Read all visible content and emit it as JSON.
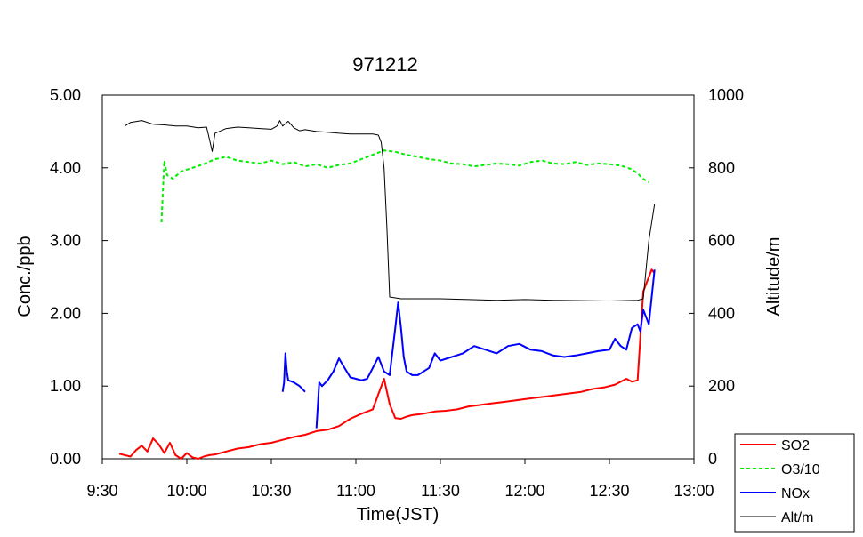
{
  "chart_data": {
    "type": "line",
    "title": "971212",
    "xlabel": "Time(JST)",
    "ylabel_left": "Conc./ppb",
    "ylabel_right": "Altitude/m",
    "x_ticks": [
      "9:30",
      "10:00",
      "10:30",
      "11:00",
      "11:30",
      "12:00",
      "12:30",
      "13:00"
    ],
    "xlim": [
      "9:30",
      "13:00"
    ],
    "y_left_ticks": [
      "0.00",
      "1.00",
      "2.00",
      "3.00",
      "4.00",
      "5.00"
    ],
    "y_left_lim": [
      0,
      5
    ],
    "y_right_ticks": [
      "0",
      "200",
      "400",
      "600",
      "800",
      "1000"
    ],
    "y_right_lim": [
      0,
      1000
    ],
    "grid": false,
    "legend_position": "bottom-right",
    "colors": {
      "SO2": "#ff0000",
      "O3/10": "#00ee00",
      "NOx": "#0000ff",
      "Alt/m": "#000000"
    },
    "series": [
      {
        "name": "SO2",
        "axis": "left",
        "style": "solid",
        "x": [
          "9:36",
          "9:40",
          "9:42",
          "9:44",
          "9:46",
          "9:48",
          "9:50",
          "9:52",
          "9:54",
          "9:56",
          "9:58",
          "10:00",
          "10:02",
          "10:04",
          "10:06",
          "10:08",
          "10:10",
          "10:14",
          "10:18",
          "10:22",
          "10:26",
          "10:30",
          "10:34",
          "10:38",
          "10:42",
          "10:46",
          "10:50",
          "10:54",
          "10:58",
          "11:02",
          "11:06",
          "11:10",
          "11:12",
          "11:14",
          "11:16",
          "11:18",
          "11:20",
          "11:24",
          "11:28",
          "11:32",
          "11:36",
          "11:40",
          "11:44",
          "11:48",
          "11:52",
          "11:56",
          "12:00",
          "12:04",
          "12:08",
          "12:12",
          "12:16",
          "12:20",
          "12:24",
          "12:28",
          "12:32",
          "12:36",
          "12:38",
          "12:40",
          "12:42",
          "12:44",
          "12:45",
          "12:46"
        ],
        "y": [
          0.07,
          0.03,
          0.12,
          0.18,
          0.1,
          0.28,
          0.2,
          0.08,
          0.22,
          0.05,
          0.0,
          0.08,
          0.02,
          0.0,
          0.03,
          0.05,
          0.06,
          0.1,
          0.14,
          0.16,
          0.2,
          0.22,
          0.26,
          0.3,
          0.33,
          0.38,
          0.4,
          0.45,
          0.55,
          0.62,
          0.68,
          1.1,
          0.75,
          0.56,
          0.55,
          0.58,
          0.6,
          0.62,
          0.65,
          0.66,
          0.68,
          0.72,
          0.74,
          0.76,
          0.78,
          0.8,
          0.82,
          0.84,
          0.86,
          0.88,
          0.9,
          0.92,
          0.96,
          0.98,
          1.02,
          1.1,
          1.06,
          1.08,
          2.3,
          2.5,
          2.6,
          2.55
        ]
      },
      {
        "name": "O3/10",
        "axis": "left",
        "style": "dashed",
        "x": [
          "9:51",
          "9:52",
          "9:53",
          "9:55",
          "9:58",
          "10:02",
          "10:06",
          "10:10",
          "10:14",
          "10:18",
          "10:22",
          "10:26",
          "10:30",
          "10:34",
          "10:38",
          "10:42",
          "10:46",
          "10:50",
          "10:54",
          "10:58",
          "11:02",
          "11:06",
          "11:10",
          "11:14",
          "11:18",
          "11:22",
          "11:26",
          "11:30",
          "11:34",
          "11:38",
          "11:42",
          "11:46",
          "11:50",
          "11:54",
          "11:58",
          "12:02",
          "12:06",
          "12:10",
          "12:14",
          "12:18",
          "12:22",
          "12:26",
          "12:30",
          "12:34",
          "12:38",
          "12:40",
          "12:42",
          "12:44"
        ],
        "y": [
          3.25,
          4.1,
          3.9,
          3.85,
          3.95,
          4.0,
          4.05,
          4.12,
          4.15,
          4.1,
          4.08,
          4.06,
          4.1,
          4.05,
          4.08,
          4.02,
          4.05,
          4.0,
          4.04,
          4.06,
          4.12,
          4.18,
          4.24,
          4.22,
          4.18,
          4.15,
          4.12,
          4.1,
          4.06,
          4.05,
          4.02,
          4.04,
          4.06,
          4.05,
          4.03,
          4.08,
          4.1,
          4.06,
          4.05,
          4.08,
          4.04,
          4.06,
          4.05,
          4.03,
          3.98,
          3.92,
          3.85,
          3.8
        ]
      },
      {
        "name": "NOx",
        "axis": "left",
        "style": "solid",
        "segments": [
          {
            "x": [
              "10:34",
              "10:34.5",
              "10:35",
              "10:35.5",
              "10:36",
              "10:38",
              "10:40",
              "10:42"
            ],
            "y": [
              0.92,
              1.05,
              1.45,
              1.2,
              1.08,
              1.05,
              1.0,
              0.92
            ]
          },
          {
            "x": [
              "10:46",
              "10:47",
              "10:48",
              "10:50",
              "10:52",
              "10:54",
              "10:56",
              "10:58",
              "11:00",
              "11:02",
              "11:04",
              "11:06",
              "11:08",
              "11:10",
              "11:12",
              "11:14",
              "11:15",
              "11:16",
              "11:17",
              "11:18",
              "11:20",
              "11:22",
              "11:24",
              "11:26",
              "11:28",
              "11:30",
              "11:34",
              "11:38",
              "11:42",
              "11:46",
              "11:50",
              "11:54",
              "11:58",
              "12:02",
              "12:06",
              "12:10",
              "12:14",
              "12:18",
              "12:22",
              "12:26",
              "12:30",
              "12:32",
              "12:34",
              "12:36",
              "12:38",
              "12:40",
              "12:41",
              "12:42",
              "12:44",
              "12:46"
            ],
            "y": [
              0.42,
              1.05,
              1.0,
              1.08,
              1.2,
              1.38,
              1.25,
              1.12,
              1.1,
              1.08,
              1.1,
              1.25,
              1.4,
              1.2,
              1.15,
              1.8,
              2.15,
              1.8,
              1.4,
              1.2,
              1.15,
              1.15,
              1.2,
              1.25,
              1.45,
              1.35,
              1.4,
              1.45,
              1.55,
              1.5,
              1.45,
              1.55,
              1.58,
              1.5,
              1.48,
              1.42,
              1.4,
              1.42,
              1.45,
              1.48,
              1.5,
              1.65,
              1.55,
              1.5,
              1.8,
              1.85,
              1.75,
              2.05,
              1.85,
              2.6
            ]
          }
        ]
      },
      {
        "name": "Alt/m",
        "axis": "right",
        "style": "solid",
        "x": [
          "9:38",
          "9:40",
          "9:44",
          "9:48",
          "9:52",
          "9:56",
          "10:00",
          "10:04",
          "10:07",
          "10:08",
          "10:09",
          "10:10",
          "10:14",
          "10:18",
          "10:22",
          "10:26",
          "10:30",
          "10:32",
          "10:33",
          "10:34",
          "10:36",
          "10:38",
          "10:40",
          "10:42",
          "10:46",
          "10:50",
          "10:54",
          "10:58",
          "11:02",
          "11:06",
          "11:08",
          "11:09",
          "11:10",
          "11:11",
          "11:12",
          "11:16",
          "11:20",
          "11:30",
          "11:40",
          "11:50",
          "12:00",
          "12:10",
          "12:20",
          "12:30",
          "12:40",
          "12:42",
          "12:44",
          "12:46"
        ],
        "y": [
          915,
          925,
          930,
          920,
          918,
          915,
          915,
          910,
          912,
          880,
          845,
          895,
          908,
          912,
          910,
          908,
          906,
          915,
          930,
          915,
          928,
          910,
          902,
          905,
          900,
          898,
          895,
          893,
          893,
          893,
          890,
          870,
          800,
          640,
          445,
          440,
          440,
          440,
          438,
          436,
          438,
          436,
          435,
          434,
          436,
          440,
          600,
          700
        ]
      }
    ]
  }
}
